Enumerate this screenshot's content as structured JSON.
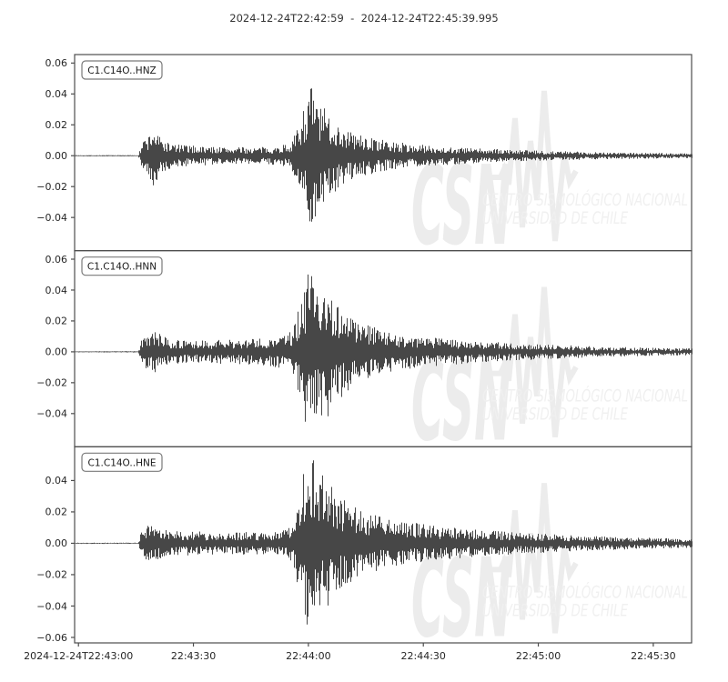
{
  "chart_data": {
    "type": "line",
    "title": "2024-12-24T22:42:59  -  2024-12-24T22:45:39.995",
    "time_start": "2024-12-24T22:42:59",
    "time_end": "2024-12-24T22:45:39.995",
    "duration_seconds": 161,
    "xlabel": "",
    "ylabel": "",
    "grid": false,
    "xticks": [
      {
        "t": 1,
        "label": "2024-12-24T22:43:00"
      },
      {
        "t": 31,
        "label": "22:43:30"
      },
      {
        "t": 61,
        "label": "22:44:00"
      },
      {
        "t": 91,
        "label": "22:44:30"
      },
      {
        "t": 121,
        "label": "22:45:00"
      },
      {
        "t": 151,
        "label": "22:45:30"
      }
    ],
    "subplots": [
      {
        "label": "C1.C14O..HNZ",
        "ylim": [
          -0.0615,
          0.0655
        ],
        "yticks": [
          {
            "v": 0.06,
            "label": "0.06"
          },
          {
            "v": 0.04,
            "label": "0.04"
          },
          {
            "v": 0.02,
            "label": "0.02"
          },
          {
            "v": 0.0,
            "label": "0.00"
          },
          {
            "v": -0.02,
            "label": "−0.02"
          },
          {
            "v": -0.04,
            "label": "−0.04"
          }
        ],
        "quiet_until_s": 16.5,
        "p_onset_s": 17,
        "s_peak_s": 61.5,
        "peak_amplitude": 0.048,
        "min_amplitude": -0.044,
        "seed": 7,
        "envelope": [
          [
            0,
            0.0004
          ],
          [
            16.5,
            0.0004
          ],
          [
            17,
            0.004
          ],
          [
            17.5,
            0.01
          ],
          [
            19,
            0.013
          ],
          [
            20.5,
            0.02
          ],
          [
            22,
            0.013
          ],
          [
            24,
            0.009
          ],
          [
            27,
            0.0075
          ],
          [
            31,
            0.0065
          ],
          [
            36,
            0.006
          ],
          [
            42,
            0.0055
          ],
          [
            48,
            0.0055
          ],
          [
            53,
            0.006
          ],
          [
            56,
            0.009
          ],
          [
            57.5,
            0.014
          ],
          [
            59,
            0.026
          ],
          [
            60.5,
            0.04
          ],
          [
            61.5,
            0.047
          ],
          [
            62.5,
            0.042
          ],
          [
            64,
            0.033
          ],
          [
            65.5,
            0.03
          ],
          [
            67,
            0.026
          ],
          [
            69,
            0.021
          ],
          [
            71,
            0.017
          ],
          [
            74,
            0.014
          ],
          [
            78,
            0.0115
          ],
          [
            82,
            0.0095
          ],
          [
            87,
            0.008
          ],
          [
            93,
            0.0065
          ],
          [
            100,
            0.0055
          ],
          [
            108,
            0.0045
          ],
          [
            118,
            0.0035
          ],
          [
            130,
            0.0028
          ],
          [
            143,
            0.0022
          ],
          [
            152,
            0.0018
          ],
          [
            161,
            0.0016
          ]
        ]
      },
      {
        "label": "C1.C14O..HNN",
        "ylim": [
          -0.0615,
          0.0655
        ],
        "yticks": [
          {
            "v": 0.06,
            "label": "0.06"
          },
          {
            "v": 0.04,
            "label": "0.04"
          },
          {
            "v": 0.02,
            "label": "0.02"
          },
          {
            "v": 0.0,
            "label": "0.00"
          },
          {
            "v": -0.02,
            "label": "−0.02"
          },
          {
            "v": -0.04,
            "label": "−0.04"
          }
        ],
        "quiet_until_s": 16.5,
        "p_onset_s": 17,
        "s_peak_s": 61.5,
        "peak_amplitude": 0.057,
        "min_amplitude": -0.052,
        "seed": 13,
        "envelope": [
          [
            0,
            0.0004
          ],
          [
            16.5,
            0.0004
          ],
          [
            17,
            0.004
          ],
          [
            17.5,
            0.009
          ],
          [
            19,
            0.012
          ],
          [
            21,
            0.014
          ],
          [
            23,
            0.01
          ],
          [
            26,
            0.008
          ],
          [
            30,
            0.007
          ],
          [
            35,
            0.0075
          ],
          [
            40,
            0.008
          ],
          [
            45,
            0.0085
          ],
          [
            50,
            0.009
          ],
          [
            54,
            0.011
          ],
          [
            56,
            0.013
          ],
          [
            57.5,
            0.02
          ],
          [
            59,
            0.035
          ],
          [
            60.5,
            0.05
          ],
          [
            61.5,
            0.057
          ],
          [
            62.5,
            0.045
          ],
          [
            63.5,
            0.038
          ],
          [
            65,
            0.046
          ],
          [
            66.5,
            0.042
          ],
          [
            68,
            0.034
          ],
          [
            70,
            0.028
          ],
          [
            72.5,
            0.023
          ],
          [
            75,
            0.019
          ],
          [
            78,
            0.016
          ],
          [
            82,
            0.013
          ],
          [
            87,
            0.011
          ],
          [
            93,
            0.0095
          ],
          [
            100,
            0.008
          ],
          [
            108,
            0.0065
          ],
          [
            116,
            0.0055
          ],
          [
            126,
            0.0045
          ],
          [
            136,
            0.0035
          ],
          [
            147,
            0.0028
          ],
          [
            161,
            0.0022
          ]
        ]
      },
      {
        "label": "C1.C14O..HNE",
        "ylim": [
          -0.0635,
          0.0615
        ],
        "yticks": [
          {
            "v": 0.04,
            "label": "0.04"
          },
          {
            "v": 0.02,
            "label": "0.02"
          },
          {
            "v": 0.0,
            "label": "0.00"
          },
          {
            "v": -0.02,
            "label": "−0.02"
          },
          {
            "v": -0.04,
            "label": "−0.04"
          },
          {
            "v": -0.06,
            "label": "−0.06"
          }
        ],
        "quiet_until_s": 16.5,
        "p_onset_s": 17,
        "s_peak_s": 61.5,
        "peak_amplitude": 0.052,
        "min_amplitude": -0.059,
        "seed": 21,
        "envelope": [
          [
            0,
            0.0004
          ],
          [
            16.5,
            0.0004
          ],
          [
            17,
            0.005
          ],
          [
            17.8,
            0.011
          ],
          [
            19,
            0.013
          ],
          [
            21,
            0.011
          ],
          [
            24,
            0.009
          ],
          [
            28,
            0.008
          ],
          [
            33,
            0.0075
          ],
          [
            38,
            0.007
          ],
          [
            43,
            0.0075
          ],
          [
            48,
            0.007
          ],
          [
            52,
            0.0075
          ],
          [
            55,
            0.009
          ],
          [
            57,
            0.015
          ],
          [
            58.5,
            0.032
          ],
          [
            60,
            0.05
          ],
          [
            61.5,
            0.058
          ],
          [
            63,
            0.05
          ],
          [
            64.5,
            0.044
          ],
          [
            66,
            0.04
          ],
          [
            68,
            0.034
          ],
          [
            70.5,
            0.029
          ],
          [
            73,
            0.025
          ],
          [
            76,
            0.021
          ],
          [
            80,
            0.017
          ],
          [
            85,
            0.0145
          ],
          [
            90,
            0.0125
          ],
          [
            96,
            0.0105
          ],
          [
            103,
            0.009
          ],
          [
            110,
            0.0078
          ],
          [
            118,
            0.0065
          ],
          [
            127,
            0.0055
          ],
          [
            137,
            0.0045
          ],
          [
            147,
            0.0038
          ],
          [
            155,
            0.0032
          ],
          [
            161,
            0.003
          ]
        ]
      }
    ],
    "watermark": {
      "logo_text": "CSN",
      "line1": "CENTRO SISMOLÓGICO NACIONAL",
      "line2": "UNIVERSIDAD DE CHILE"
    },
    "colors": {
      "trace": "#474747",
      "axis": "#4d4d4d",
      "tick_text": "#262626",
      "title_text": "#333333",
      "label_box_border": "#7a7a7a",
      "watermark_logo": "#ececec",
      "watermark_text": "#f0f0f0",
      "background": "#ffffff"
    }
  }
}
